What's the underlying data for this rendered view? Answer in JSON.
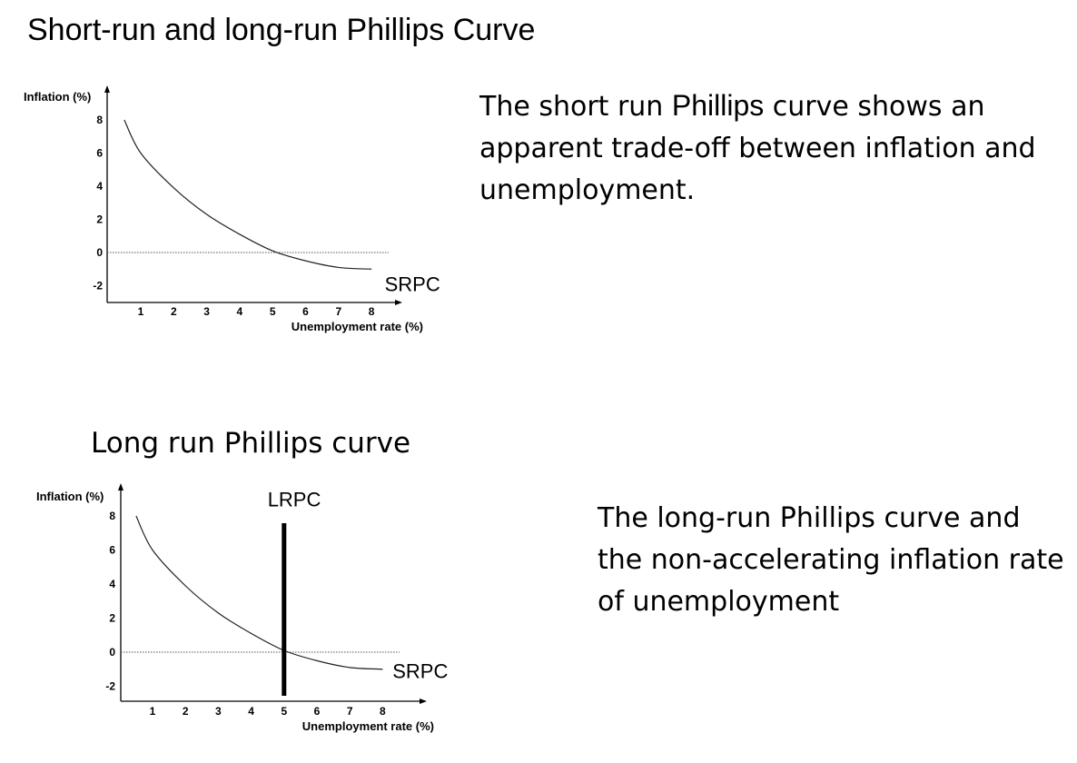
{
  "page": {
    "title": "Short-run and long-run Phillips Curve",
    "description_1_parts": [
      "The short run ",
      "Phillips",
      " curve shows an apparent trade-off between inflation and unemployment."
    ],
    "subtitle_2": "Long run Phillips curve",
    "description_2": "The long-run Phillips curve and the non-accelerating inflation rate of unemployment"
  },
  "chart_data": [
    {
      "type": "line",
      "xlabel": "Unemployment rate (%)",
      "ylabel": "Inflation (%)",
      "xlim": [
        0,
        8.8
      ],
      "ylim": [
        -2.3,
        8.6
      ],
      "x_ticks": [
        1,
        2,
        3,
        4,
        5,
        6,
        7,
        8
      ],
      "y_ticks": [
        8,
        6,
        4,
        2,
        0,
        -2
      ],
      "reference_lines": [
        {
          "axis": "y",
          "value": 0,
          "style": "dotted"
        }
      ],
      "series": [
        {
          "name": "SRPC",
          "x": [
            0.5,
            1,
            2,
            3,
            4,
            5,
            6,
            7,
            8
          ],
          "y": [
            8.0,
            6.0,
            3.9,
            2.3,
            1.1,
            0.1,
            -0.5,
            -0.9,
            -1.0
          ]
        }
      ],
      "annotations": [
        {
          "text": "SRPC",
          "x": 8.4,
          "y": -1.9
        }
      ]
    },
    {
      "type": "line",
      "xlabel": "Unemployment rate (%)",
      "ylabel": "Inflation (%)",
      "xlim": [
        0,
        8.8
      ],
      "ylim": [
        -2.3,
        8.6
      ],
      "x_ticks": [
        1,
        2,
        3,
        4,
        5,
        6,
        7,
        8
      ],
      "y_ticks": [
        8,
        6,
        4,
        2,
        0,
        -2
      ],
      "reference_lines": [
        {
          "axis": "y",
          "value": 0,
          "style": "dotted"
        }
      ],
      "series": [
        {
          "name": "SRPC",
          "x": [
            0.5,
            1,
            2,
            3,
            4,
            5,
            6,
            7,
            8
          ],
          "y": [
            8.0,
            6.0,
            3.9,
            2.3,
            1.1,
            0.1,
            -0.5,
            -0.9,
            -1.0
          ]
        },
        {
          "name": "LRPC",
          "x": [
            5,
            5
          ],
          "y": [
            8.0,
            -2.3
          ]
        }
      ],
      "annotations": [
        {
          "text": "LRPC",
          "x": 4.5,
          "y": 9.0
        },
        {
          "text": "SRPC",
          "x": 8.3,
          "y": -1.1
        }
      ]
    }
  ]
}
